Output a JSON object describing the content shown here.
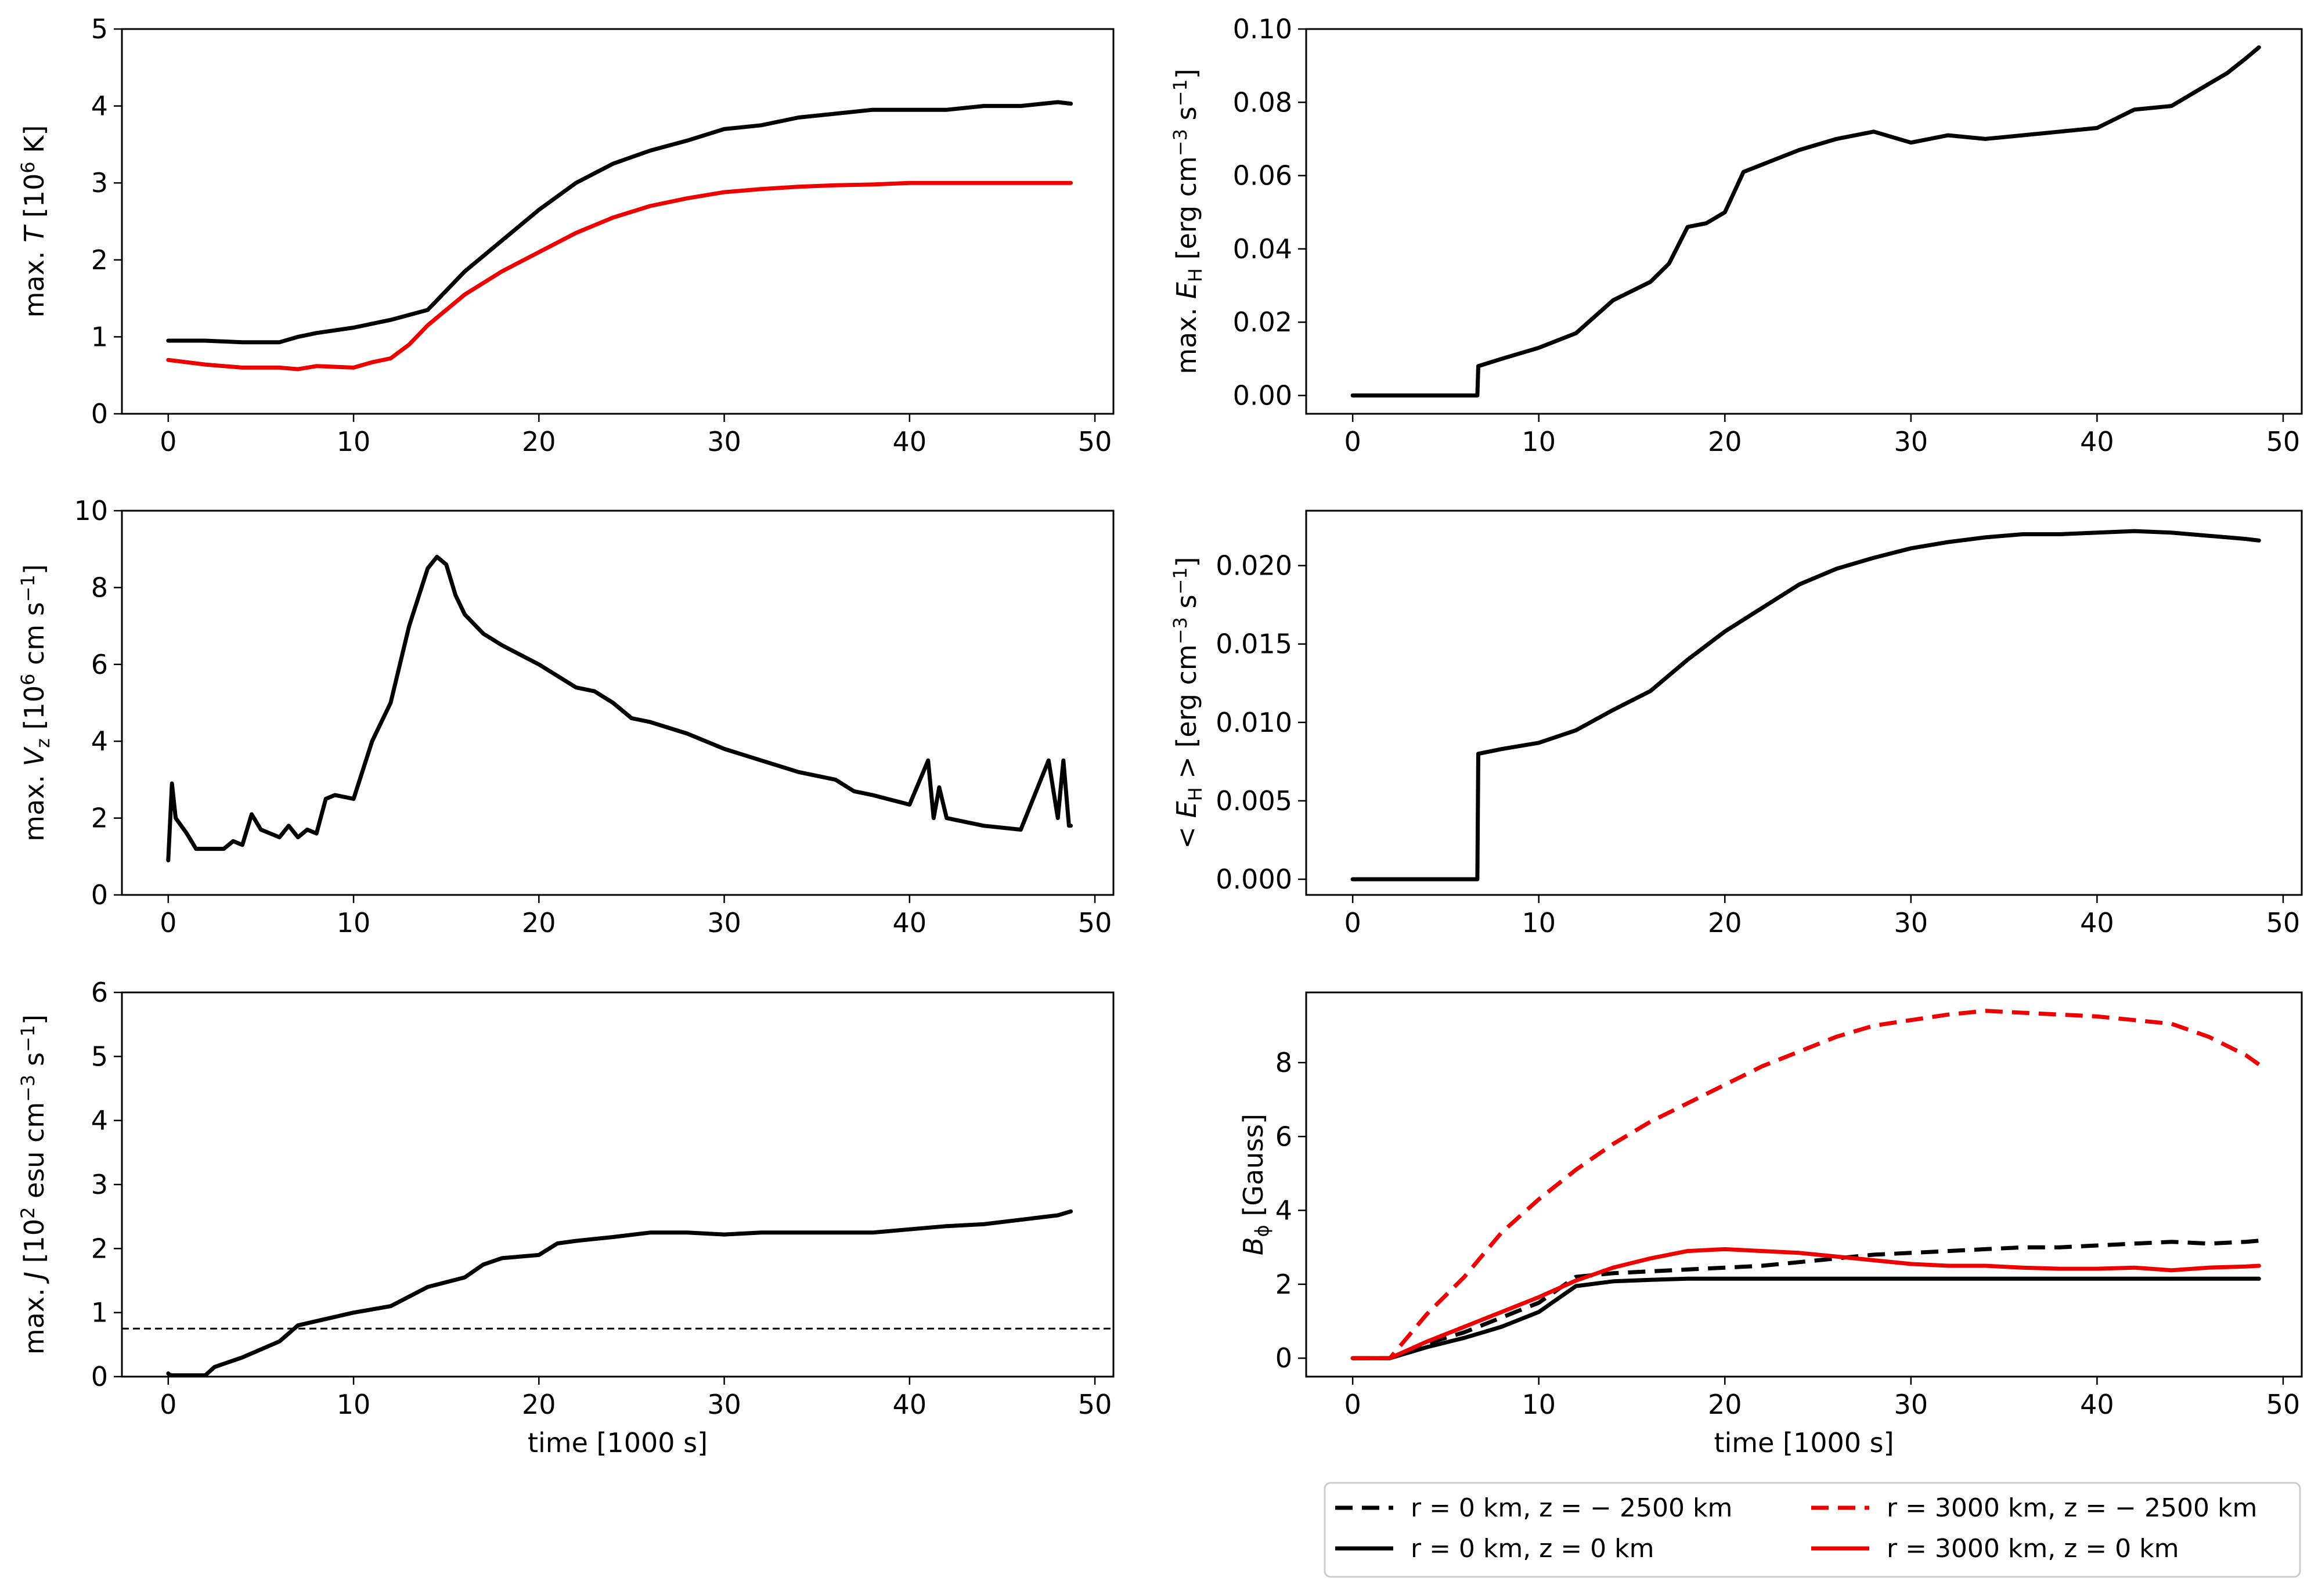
{
  "chart_data": [
    {
      "type": "line",
      "panel": "top-left",
      "title": "",
      "xlabel": "",
      "ylabel_parts": [
        "max. ",
        "T",
        " [10",
        "6",
        " K]"
      ],
      "xlim": [
        -2.5,
        51
      ],
      "ylim": [
        0,
        5
      ],
      "xticks": [
        "0",
        "10",
        "20",
        "30",
        "40",
        "50"
      ],
      "yticks": [
        "0",
        "1",
        "2",
        "3",
        "4",
        "5"
      ],
      "series": [
        {
          "name": "max T (black)",
          "color": "#000000",
          "style": "solid",
          "x": [
            0,
            2,
            4,
            6,
            7,
            8,
            10,
            12,
            14,
            16,
            18,
            20,
            22,
            24,
            26,
            28,
            30,
            32,
            34,
            36,
            38,
            40,
            42,
            44,
            46,
            48,
            48.7
          ],
          "y": [
            0.95,
            0.95,
            0.93,
            0.93,
            1.0,
            1.05,
            1.12,
            1.22,
            1.35,
            1.85,
            2.25,
            2.65,
            3.0,
            3.25,
            3.42,
            3.55,
            3.7,
            3.75,
            3.85,
            3.9,
            3.95,
            3.95,
            3.95,
            4.0,
            4.0,
            4.05,
            4.03
          ]
        },
        {
          "name": "max T (red)",
          "color": "#ee0000",
          "style": "solid",
          "x": [
            0,
            2,
            4,
            6,
            7,
            8,
            10,
            11,
            12,
            13,
            14,
            16,
            18,
            20,
            22,
            24,
            26,
            28,
            30,
            32,
            34,
            36,
            38,
            40,
            42,
            44,
            46,
            48,
            48.7
          ],
          "y": [
            0.7,
            0.64,
            0.6,
            0.6,
            0.58,
            0.62,
            0.6,
            0.67,
            0.72,
            0.9,
            1.15,
            1.55,
            1.85,
            2.1,
            2.35,
            2.55,
            2.7,
            2.8,
            2.88,
            2.92,
            2.95,
            2.97,
            2.98,
            3.0,
            3.0,
            3.0,
            3.0,
            3.0,
            3.0
          ]
        }
      ]
    },
    {
      "type": "line",
      "panel": "top-right",
      "xlabel": "",
      "ylabel_parts": [
        "max. ",
        "E",
        "H",
        " [erg cm",
        "−3",
        " s",
        "−1",
        "]"
      ],
      "xlim": [
        -2.5,
        51
      ],
      "ylim": [
        -0.005,
        0.1
      ],
      "xticks": [
        "0",
        "10",
        "20",
        "30",
        "40",
        "50"
      ],
      "yticks": [
        "0.00",
        "0.02",
        "0.04",
        "0.06",
        "0.08",
        "0.10"
      ],
      "series": [
        {
          "name": "max E_H",
          "color": "#000000",
          "style": "solid",
          "x": [
            0,
            6.7,
            6.75,
            8,
            10,
            12,
            14,
            16,
            17,
            18,
            19,
            20,
            21,
            22,
            24,
            26,
            28,
            30,
            32,
            34,
            36,
            38,
            40,
            42,
            44,
            46,
            47,
            48,
            48.7
          ],
          "y": [
            0,
            0,
            0.008,
            0.01,
            0.013,
            0.017,
            0.026,
            0.031,
            0.036,
            0.046,
            0.047,
            0.05,
            0.061,
            0.063,
            0.067,
            0.07,
            0.072,
            0.069,
            0.071,
            0.07,
            0.071,
            0.072,
            0.073,
            0.078,
            0.079,
            0.085,
            0.088,
            0.092,
            0.095
          ]
        }
      ]
    },
    {
      "type": "line",
      "panel": "middle-left",
      "xlabel": "",
      "ylabel_parts": [
        "max. ",
        "V",
        "z",
        " [10",
        "6",
        " cm s",
        "−1",
        "]"
      ],
      "xlim": [
        -2.5,
        51
      ],
      "ylim": [
        0,
        10
      ],
      "xticks": [
        "0",
        "10",
        "20",
        "30",
        "40",
        "50"
      ],
      "yticks": [
        "0",
        "2",
        "4",
        "6",
        "8",
        "10"
      ],
      "series": [
        {
          "name": "max Vz",
          "color": "#000000",
          "style": "solid",
          "x": [
            0,
            0.2,
            0.4,
            1,
            1.5,
            3,
            3.5,
            4,
            4.5,
            5,
            6,
            6.5,
            7,
            7.5,
            8,
            8.5,
            9,
            10,
            11,
            12,
            13,
            14,
            14.5,
            15,
            15.5,
            16,
            17,
            18,
            20,
            22,
            23,
            24,
            25,
            26,
            28,
            30,
            32,
            34,
            36,
            37,
            38,
            40,
            41,
            41.3,
            41.6,
            42,
            43,
            44,
            46,
            47,
            47.5,
            48,
            48.3,
            48.6,
            48.7
          ],
          "y": [
            0.9,
            2.9,
            2.0,
            1.6,
            1.2,
            1.2,
            1.4,
            1.3,
            2.1,
            1.7,
            1.5,
            1.8,
            1.5,
            1.7,
            1.6,
            2.5,
            2.6,
            2.5,
            4.0,
            5.0,
            7.0,
            8.5,
            8.8,
            8.6,
            7.8,
            7.3,
            6.8,
            6.5,
            6.0,
            5.4,
            5.3,
            5.0,
            4.6,
            4.5,
            4.2,
            3.8,
            3.5,
            3.2,
            3.0,
            2.7,
            2.6,
            2.35,
            3.5,
            2.0,
            2.8,
            2.0,
            1.9,
            1.8,
            1.7,
            2.9,
            3.5,
            2.0,
            3.5,
            1.8,
            1.8
          ]
        }
      ]
    },
    {
      "type": "line",
      "panel": "middle-right",
      "xlabel": "",
      "ylabel_parts": [
        "< E",
        "H",
        " >  [erg cm",
        "−3",
        " s",
        "−1",
        "]"
      ],
      "xlim": [
        -2.5,
        51
      ],
      "ylim": [
        -0.001,
        0.0235
      ],
      "xticks": [
        "0",
        "10",
        "20",
        "30",
        "40",
        "50"
      ],
      "yticks": [
        "0.000",
        "0.005",
        "0.010",
        "0.015",
        "0.020"
      ],
      "series": [
        {
          "name": "<E_H>",
          "color": "#000000",
          "style": "solid",
          "x": [
            0,
            6.7,
            6.75,
            8,
            10,
            12,
            14,
            16,
            18,
            20,
            22,
            24,
            26,
            28,
            30,
            32,
            34,
            36,
            38,
            40,
            42,
            44,
            46,
            48,
            48.7
          ],
          "y": [
            0,
            0,
            0.008,
            0.0083,
            0.0087,
            0.0095,
            0.0108,
            0.012,
            0.014,
            0.0158,
            0.0173,
            0.0188,
            0.0198,
            0.0205,
            0.0211,
            0.0215,
            0.0218,
            0.022,
            0.022,
            0.0221,
            0.0222,
            0.0221,
            0.0219,
            0.0217,
            0.0216
          ]
        }
      ]
    },
    {
      "type": "line",
      "panel": "bottom-left",
      "xlabel": "time [1000 s]",
      "ylabel_parts": [
        "max. ",
        "J",
        " [10",
        "2",
        " esu cm",
        "−3",
        " s",
        "−1",
        "]"
      ],
      "xlim": [
        -2.5,
        51
      ],
      "ylim": [
        0,
        6
      ],
      "xticks": [
        "0",
        "10",
        "20",
        "30",
        "40",
        "50"
      ],
      "yticks": [
        "0",
        "1",
        "2",
        "3",
        "4",
        "5",
        "6"
      ],
      "threshold": 0.75,
      "series": [
        {
          "name": "max J",
          "color": "#000000",
          "style": "solid",
          "x": [
            0,
            0.1,
            2,
            2.5,
            4,
            6,
            7,
            10,
            12,
            14,
            16,
            17,
            18,
            20,
            21,
            22,
            24,
            26,
            28,
            30,
            32,
            34,
            36,
            38,
            40,
            42,
            44,
            46,
            48,
            48.7
          ],
          "y": [
            0.05,
            0.02,
            0.02,
            0.15,
            0.3,
            0.55,
            0.8,
            1.0,
            1.1,
            1.4,
            1.55,
            1.75,
            1.85,
            1.9,
            2.08,
            2.12,
            2.18,
            2.25,
            2.25,
            2.22,
            2.25,
            2.25,
            2.25,
            2.25,
            2.3,
            2.35,
            2.38,
            2.45,
            2.52,
            2.58
          ]
        }
      ]
    },
    {
      "type": "line",
      "panel": "bottom-right",
      "xlabel": "time [1000 s]",
      "ylabel_parts": [
        "B",
        "ϕ",
        " [Gauss]"
      ],
      "xlim": [
        -2.5,
        51
      ],
      "ylim": [
        -0.5,
        9.9
      ],
      "xticks": [
        "0",
        "10",
        "20",
        "30",
        "40",
        "50"
      ],
      "yticks": [
        "0",
        "2",
        "4",
        "6",
        "8"
      ],
      "legend_position": "bottom-outside",
      "series": [
        {
          "name": "r = 0 km, z = − 2500 km",
          "color": "#000000",
          "style": "dashed",
          "x": [
            0,
            2,
            4,
            6,
            8,
            10,
            12,
            14,
            16,
            18,
            20,
            22,
            24,
            26,
            28,
            30,
            32,
            34,
            36,
            38,
            40,
            42,
            44,
            46,
            48,
            48.7
          ],
          "y": [
            0,
            0,
            0.4,
            0.7,
            1.1,
            1.5,
            2.2,
            2.3,
            2.35,
            2.4,
            2.45,
            2.5,
            2.6,
            2.7,
            2.8,
            2.85,
            2.9,
            2.95,
            3.0,
            3.0,
            3.05,
            3.1,
            3.15,
            3.1,
            3.15,
            3.18
          ]
        },
        {
          "name": "r = 0 km, z = 0 km",
          "color": "#000000",
          "style": "solid",
          "x": [
            0,
            2,
            4,
            6,
            8,
            10,
            11,
            12,
            14,
            16,
            18,
            20,
            25,
            30,
            35,
            40,
            45,
            48.7
          ],
          "y": [
            0,
            0,
            0.3,
            0.55,
            0.85,
            1.25,
            1.6,
            1.95,
            2.08,
            2.12,
            2.15,
            2.15,
            2.15,
            2.15,
            2.15,
            2.15,
            2.15,
            2.15
          ]
        },
        {
          "name": "r = 3000 km, z = − 2500 km",
          "color": "#ee0000",
          "style": "dashed",
          "x": [
            0,
            2,
            3,
            4,
            6,
            8,
            10,
            12,
            14,
            16,
            18,
            20,
            22,
            24,
            26,
            28,
            30,
            32,
            34,
            36,
            38,
            40,
            42,
            44,
            46,
            48,
            48.7
          ],
          "y": [
            0,
            0,
            0.6,
            1.2,
            2.2,
            3.4,
            4.3,
            5.1,
            5.8,
            6.4,
            6.9,
            7.4,
            7.9,
            8.3,
            8.7,
            9.0,
            9.15,
            9.3,
            9.4,
            9.35,
            9.3,
            9.25,
            9.15,
            9.05,
            8.7,
            8.2,
            7.95
          ]
        },
        {
          "name": "r = 3000 km, z = 0 km",
          "color": "#ee0000",
          "style": "solid",
          "x": [
            0,
            2,
            4,
            6,
            8,
            10,
            12,
            14,
            16,
            18,
            20,
            22,
            24,
            26,
            28,
            30,
            32,
            34,
            36,
            38,
            40,
            42,
            44,
            46,
            48,
            48.7
          ],
          "y": [
            0,
            0,
            0.45,
            0.85,
            1.25,
            1.65,
            2.1,
            2.45,
            2.7,
            2.9,
            2.95,
            2.9,
            2.85,
            2.75,
            2.65,
            2.55,
            2.5,
            2.5,
            2.45,
            2.42,
            2.42,
            2.45,
            2.38,
            2.45,
            2.48,
            2.5
          ]
        }
      ]
    }
  ]
}
